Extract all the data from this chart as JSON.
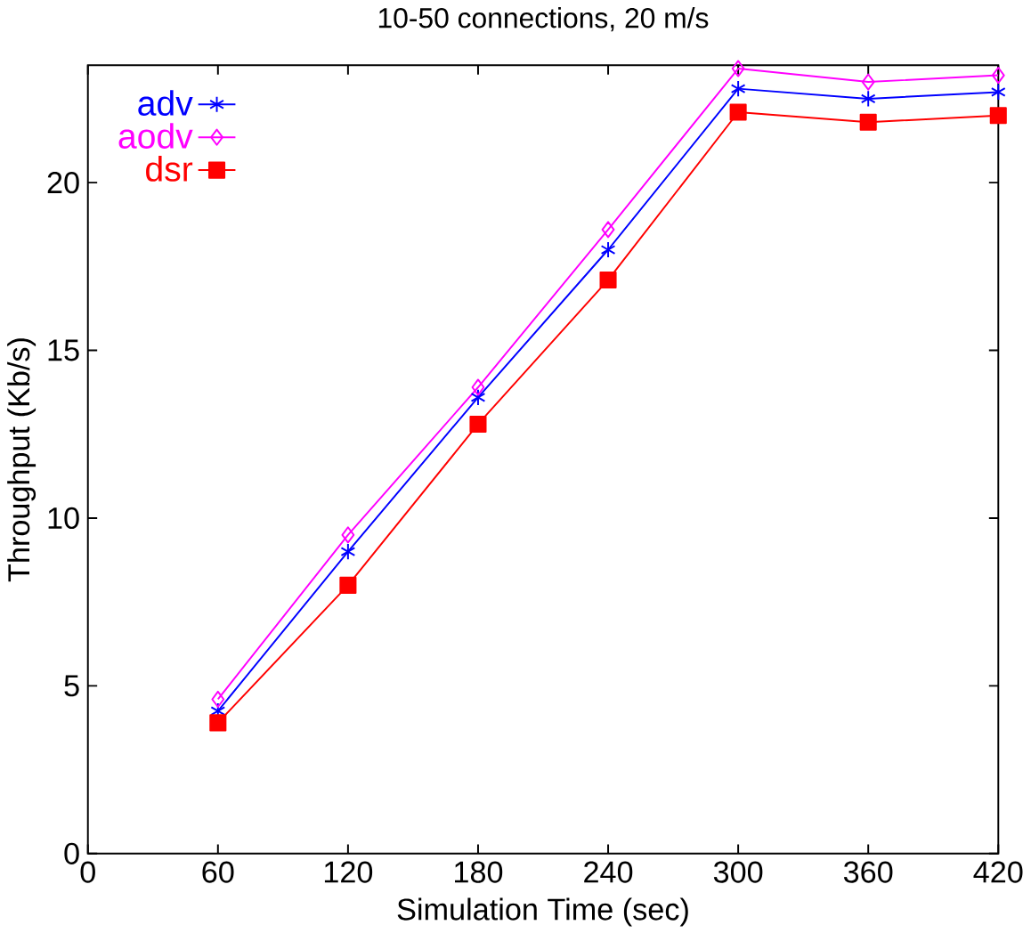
{
  "chart_data": {
    "type": "line",
    "title": "10-50 connections, 20 m/s",
    "xlabel": "Simulation Time (sec)",
    "ylabel": "Throughput (Kb/s)",
    "x": [
      60,
      120,
      180,
      240,
      300,
      360,
      420
    ],
    "series": [
      {
        "name": "adv",
        "color": "#0000ff",
        "marker": "cross",
        "values": [
          4.25,
          9.0,
          13.6,
          18.0,
          22.8,
          22.5,
          22.7
        ]
      },
      {
        "name": "aodv",
        "color": "#ff00ff",
        "marker": "diamond",
        "values": [
          4.6,
          9.5,
          13.9,
          18.6,
          23.4,
          23.0,
          23.2
        ]
      },
      {
        "name": "dsr",
        "color": "#ff0000",
        "marker": "square",
        "values": [
          3.9,
          8.0,
          12.8,
          17.1,
          22.1,
          21.8,
          22.0
        ]
      }
    ],
    "xlim": [
      0,
      420
    ],
    "ylim": [
      0,
      23.5
    ],
    "xticks": [
      0,
      60,
      120,
      180,
      240,
      300,
      360,
      420
    ],
    "yticks": [
      0,
      5,
      10,
      15,
      20
    ],
    "grid": false,
    "legend": "top left",
    "line_style": "solid"
  }
}
